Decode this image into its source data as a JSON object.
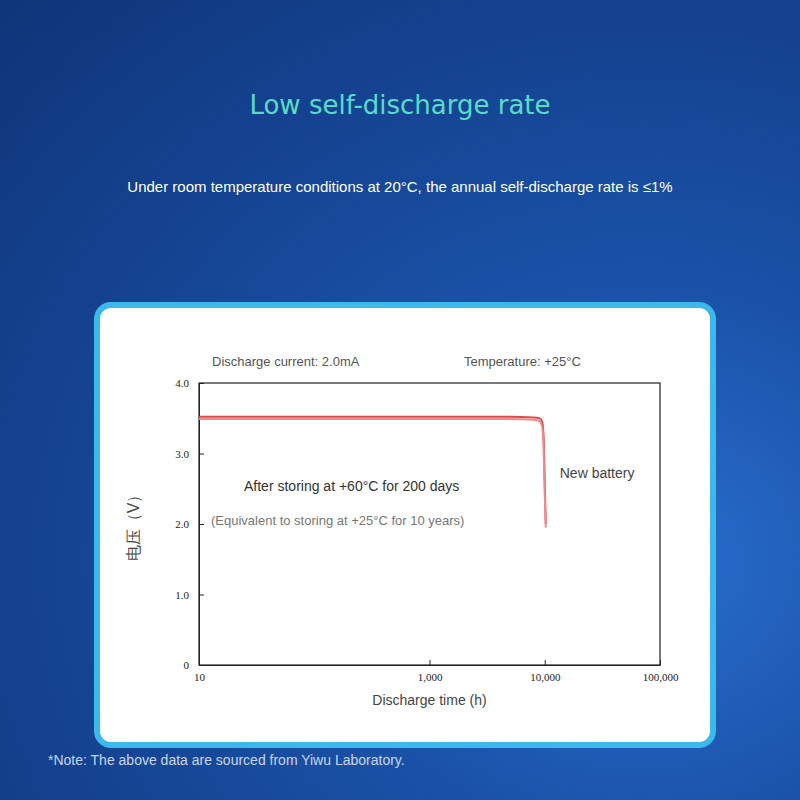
{
  "chart_data": {
    "type": "line",
    "title": "Low self-discharge rate",
    "subtitle": "Under room temperature conditions at 20°C, the annual self-discharge rate is ≤1%",
    "annotations": [
      "Discharge current: 2.0mA",
      "Temperature: +25°C",
      "(Equivalent to storing at +25°C for 10 years)"
    ],
    "footnote": "*Note: The above data are sourced from Yiwu Laboratory.",
    "x_label": "Discharge time (h)",
    "y_label": "电压（V）",
    "log": "x",
    "grid": false,
    "xlim": [
      10,
      100000
    ],
    "ylim": [
      0,
      4
    ],
    "xticks": [
      10,
      {
        "value": 1000,
        "label": "1,000"
      },
      {
        "value": 10000,
        "label": "10,000"
      },
      {
        "value": 100000,
        "label": "100,000"
      }
    ],
    "yticks": [
      {
        "value": 4,
        "label": "4.0"
      },
      {
        "value": 3,
        "label": "3.0"
      },
      {
        "value": 2,
        "label": "2.0"
      },
      {
        "value": 1,
        "label": "1.0"
      },
      0
    ],
    "x": [
      10,
      100,
      1000,
      5000,
      8000,
      9000,
      9500,
      9800,
      10000,
      10200
    ],
    "series": [
      {
        "name": "New battery",
        "color": "#e04a4a",
        "values": [
          3.52,
          3.52,
          3.52,
          3.52,
          3.51,
          3.5,
          3.45,
          3.2,
          2.6,
          2.0
        ]
      },
      {
        "name": "After storing at +60°C for 200 days",
        "color": "#ee8a8a",
        "values": [
          3.49,
          3.49,
          3.49,
          3.49,
          3.48,
          3.46,
          3.38,
          3.0,
          2.4,
          1.95
        ]
      }
    ]
  }
}
